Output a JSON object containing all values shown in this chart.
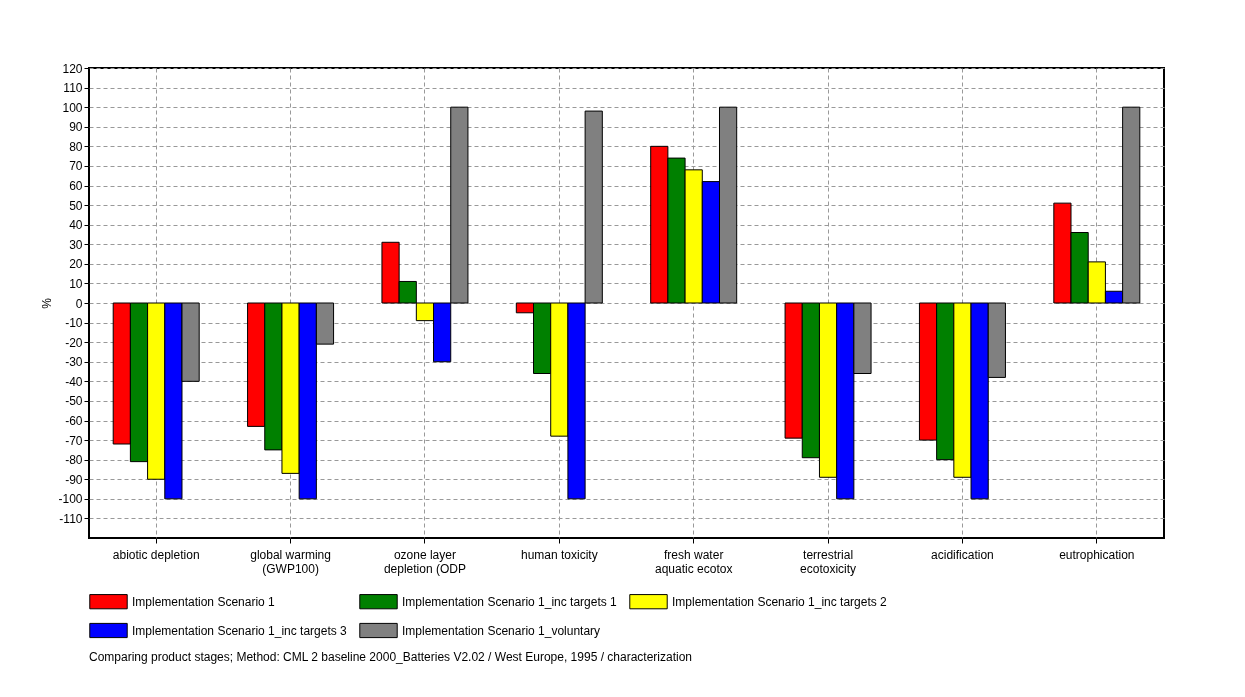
{
  "chart_data": {
    "type": "bar",
    "ylabel": "%",
    "categories": [
      "abiotic depletion",
      "global warming\n(GWP100)",
      "ozone layer\ndepletion (ODP",
      "human toxicity",
      "fresh water\naquatic ecotox",
      "terrestrial\necotoxicity",
      "acidification",
      "eutrophication"
    ],
    "series": [
      {
        "name": "Implementation Scenario 1",
        "color": "#ff0000",
        "values": [
          -72,
          -63,
          31,
          -5,
          80,
          -69,
          -70,
          51
        ]
      },
      {
        "name": "Implementation Scenario 1_inc targets 1",
        "color": "#008000",
        "values": [
          -81,
          -75,
          11,
          -36,
          74,
          -79,
          -80,
          36
        ]
      },
      {
        "name": "Implementation Scenario 1_inc targets 2",
        "color": "#ffff00",
        "values": [
          -90,
          -87,
          -9,
          -68,
          68,
          -89,
          -89,
          21
        ]
      },
      {
        "name": "Implementation Scenario 1_inc targets 3",
        "color": "#0000ff",
        "values": [
          -100,
          -100,
          -30,
          -100,
          62,
          -100,
          -100,
          6
        ]
      },
      {
        "name": "Implementation Scenario 1_voluntary",
        "color": "#808080",
        "values": [
          -40,
          -21,
          100,
          98,
          100,
          -36,
          -38,
          100
        ]
      }
    ],
    "ylim": [
      -120,
      120
    ],
    "yticks": [
      -110,
      -100,
      -90,
      -80,
      -70,
      -60,
      -50,
      -40,
      -30,
      -20,
      -10,
      0,
      10,
      20,
      30,
      40,
      50,
      60,
      70,
      80,
      90,
      100,
      110,
      120
    ],
    "grid": true,
    "legend": "bottom",
    "annotations": [
      "Comparing product stages;  Method: CML 2 baseline 2000_Batteries V2.02 /  West Europe, 1995 / characterization"
    ]
  }
}
